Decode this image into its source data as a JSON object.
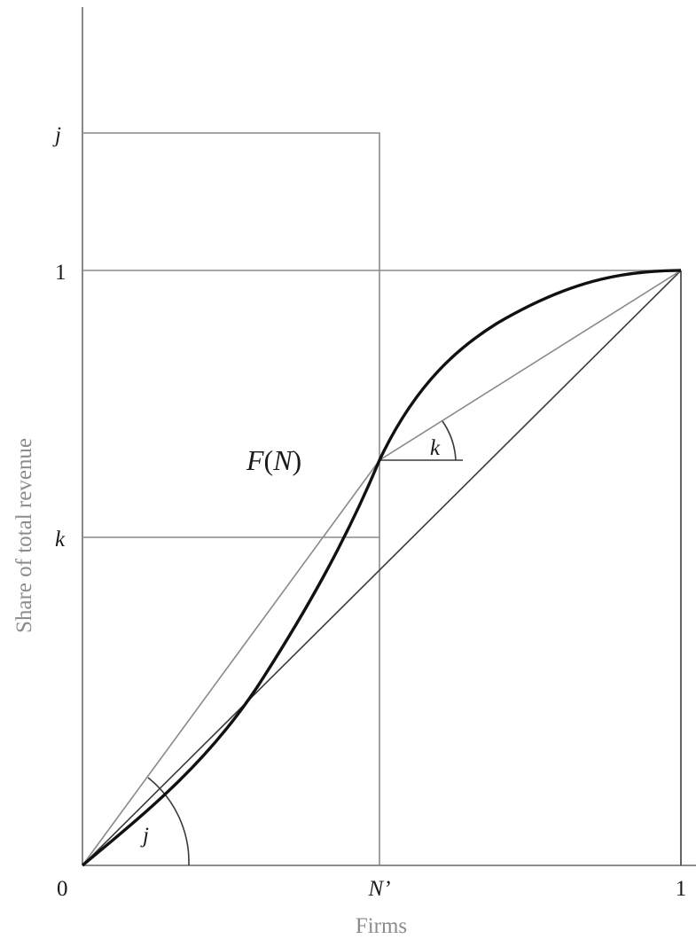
{
  "diagram": {
    "colors": {
      "axis_title": "#8c8c8c",
      "guide_lines": "#8a8a8a",
      "curve": "#111111",
      "diagonal": "#3a3a3a"
    },
    "axes": {
      "y_title": "Share of total revenue",
      "x_title": "Firms",
      "origin_label": "0",
      "x_tick_mid": "N’",
      "x_tick_end": "1",
      "y_tick_top": "j",
      "y_tick_one": "1",
      "y_tick_k": "k"
    },
    "curve_label": {
      "func": "F",
      "open": "(",
      "arg": "N",
      "close": ")"
    },
    "angles": {
      "j_label": "j",
      "k_label": "k"
    }
  }
}
